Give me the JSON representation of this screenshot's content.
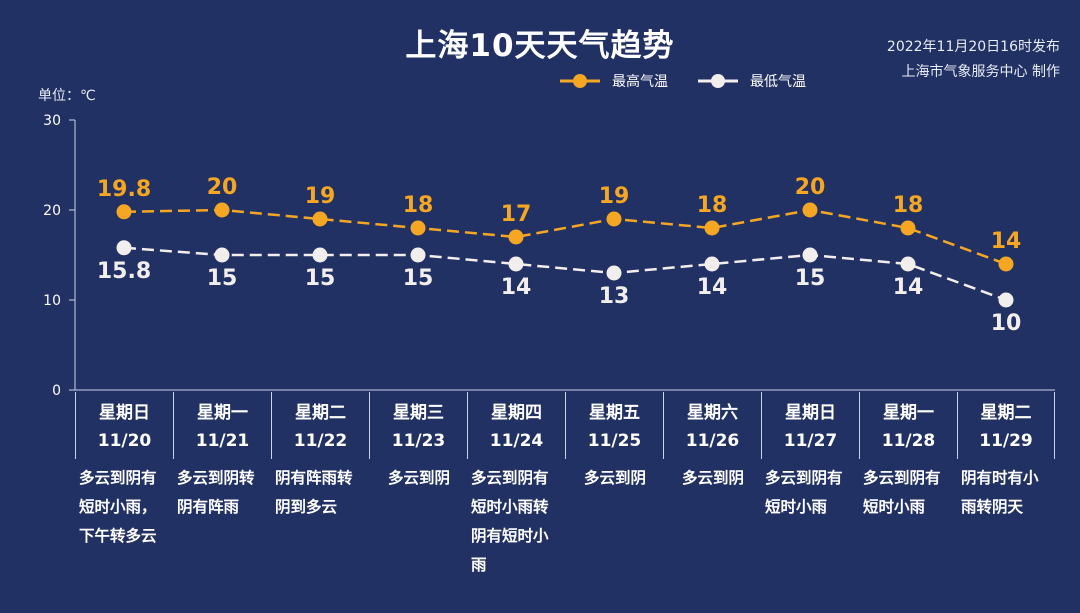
{
  "title": "上海10天天气趋势",
  "publish": {
    "line1": "2022年11月20日16时发布",
    "line2": "上海市气象服务中心 制作"
  },
  "unit_label": "单位：℃",
  "colors": {
    "background": "#223163",
    "high": "#f5a623",
    "low": "#f3eeee",
    "axis": "#c9d2e8"
  },
  "legend": [
    {
      "label": "最高气温",
      "color": "#f5a623"
    },
    {
      "label": "最低气温",
      "color": "#f3eeee"
    }
  ],
  "days": [
    {
      "weekday": "星期日",
      "date": "11/20",
      "desc": "多云到阴有短时小雨，下午转多云"
    },
    {
      "weekday": "星期一",
      "date": "11/21",
      "desc": "多云到阴转阴有阵雨"
    },
    {
      "weekday": "星期二",
      "date": "11/22",
      "desc": "阴有阵雨转阴到多云"
    },
    {
      "weekday": "星期三",
      "date": "11/23",
      "desc": "多云到阴"
    },
    {
      "weekday": "星期四",
      "date": "11/24",
      "desc": "多云到阴有短时小雨转阴有短时小雨"
    },
    {
      "weekday": "星期五",
      "date": "11/25",
      "desc": "多云到阴"
    },
    {
      "weekday": "星期六",
      "date": "11/26",
      "desc": "多云到阴"
    },
    {
      "weekday": "星期日",
      "date": "11/27",
      "desc": "多云到阴有短时小雨"
    },
    {
      "weekday": "星期一",
      "date": "11/28",
      "desc": "多云到阴有短时小雨"
    },
    {
      "weekday": "星期二",
      "date": "11/29",
      "desc": "阴有时有小雨转阴天"
    }
  ],
  "chart_data": {
    "type": "line",
    "title": "上海10天天气趋势",
    "ylabel": "单位：℃",
    "ylim": [
      0,
      30
    ],
    "yticks": [
      0,
      10,
      20,
      30
    ],
    "categories": [
      "11/20",
      "11/21",
      "11/22",
      "11/23",
      "11/24",
      "11/25",
      "11/26",
      "11/27",
      "11/28",
      "11/29"
    ],
    "series": [
      {
        "name": "最高气温",
        "values": [
          19.8,
          20,
          19,
          18,
          17,
          19,
          18,
          20,
          18,
          14
        ],
        "labels": [
          "19.8",
          "20",
          "19",
          "18",
          "17",
          "19",
          "18",
          "20",
          "18",
          "14"
        ],
        "color": "#f5a623"
      },
      {
        "name": "最低气温",
        "values": [
          15.8,
          15,
          15,
          15,
          14,
          13,
          14,
          15,
          14,
          10
        ],
        "labels": [
          "15.8",
          "15",
          "15",
          "15",
          "14",
          "13",
          "14",
          "15",
          "14",
          "10"
        ],
        "color": "#f3eeee"
      }
    ],
    "grid": false,
    "legend_position": "top-right"
  }
}
